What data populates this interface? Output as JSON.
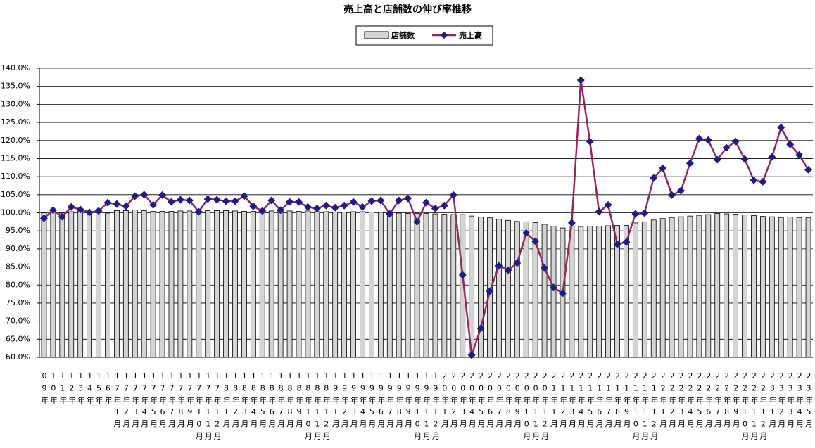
{
  "chart_data": {
    "type": "bar-line",
    "title": "売上高と店舗数の伸び率推移",
    "categories": [
      "09年",
      "10年",
      "11年",
      "12年",
      "13年",
      "14年",
      "15年",
      "16年",
      "17年1月",
      "17年2月",
      "17年3月",
      "17年4月",
      "17年5月",
      "17年6月",
      "17年7月",
      "17年8月",
      "17年9月",
      "17年10月",
      "17年11月",
      "17年12月",
      "18年1月",
      "18年2月",
      "18年3月",
      "18年4月",
      "18年5月",
      "18年6月",
      "18年7月",
      "18年8月",
      "18年9月",
      "18年10月",
      "18年11月",
      "18年12月",
      "19年1月",
      "19年2月",
      "19年3月",
      "19年4月",
      "19年5月",
      "19年6月",
      "19年7月",
      "19年8月",
      "19年9月",
      "19年10月",
      "19年11月",
      "19年12月",
      "20年1月",
      "20年2月",
      "20年3月",
      "20年4月",
      "20年5月",
      "20年6月",
      "20年7月",
      "20年8月",
      "20年9月",
      "20年10月",
      "20年11月",
      "20年12月",
      "21年1月",
      "21年2月",
      "21年3月",
      "21年4月",
      "21年5月",
      "21年6月",
      "21年7月",
      "21年8月",
      "21年9月",
      "21年10月",
      "21年11月",
      "21年12月",
      "22年1月",
      "22年2月",
      "22年3月",
      "22年4月",
      "22年5月",
      "22年6月",
      "22年7月",
      "22年8月",
      "22年9月",
      "22年10月",
      "22年11月",
      "22年12月",
      "23年1月",
      "23年2月",
      "23年3月",
      "23年4月",
      "23年5月"
    ],
    "series": [
      {
        "name": "店舗数",
        "type": "bar",
        "color": "#d4d4d4",
        "values": [
          100.0,
          100.2,
          100.0,
          100.3,
          100.4,
          100.1,
          100.0,
          99.9,
          100.6,
          100.6,
          100.8,
          100.6,
          100.4,
          100.4,
          100.4,
          100.5,
          100.5,
          100.4,
          100.6,
          100.6,
          100.6,
          100.5,
          100.4,
          100.4,
          100.5,
          100.5,
          100.6,
          100.5,
          100.4,
          100.5,
          100.3,
          100.3,
          100.2,
          100.2,
          100.3,
          100.3,
          100.2,
          100.1,
          100.0,
          99.9,
          99.8,
          99.8,
          99.8,
          99.7,
          99.6,
          99.5,
          99.5,
          99.1,
          98.8,
          98.6,
          98.2,
          97.9,
          97.6,
          97.5,
          97.3,
          96.8,
          96.3,
          95.8,
          96.3,
          96.2,
          96.3,
          96.3,
          96.4,
          96.5,
          96.5,
          97.2,
          97.5,
          98.0,
          98.4,
          98.7,
          98.9,
          99.1,
          99.3,
          99.5,
          99.8,
          99.7,
          99.6,
          99.4,
          99.2,
          99.0,
          98.9,
          98.7,
          98.8,
          98.7,
          98.7
        ]
      },
      {
        "name": "売上高",
        "type": "line",
        "color": "#99245e",
        "marker_color": "#1c1c8a",
        "values": [
          98.5,
          100.7,
          98.9,
          101.6,
          100.9,
          100.1,
          100.5,
          102.8,
          102.4,
          101.8,
          104.6,
          105.0,
          102.2,
          104.9,
          103.0,
          103.6,
          103.4,
          100.3,
          103.8,
          103.6,
          103.2,
          103.2,
          104.6,
          101.8,
          100.5,
          103.4,
          100.7,
          103.0,
          103.0,
          101.6,
          101.2,
          102.0,
          101.4,
          102.0,
          103.0,
          101.6,
          103.2,
          103.4,
          99.7,
          103.4,
          104.0,
          97.5,
          102.8,
          101.2,
          102.0,
          104.9,
          82.8,
          60.6,
          68.0,
          78.3,
          85.3,
          84.1,
          86.1,
          94.4,
          92.1,
          84.7,
          79.3,
          77.7,
          97.2,
          136.7,
          119.7,
          100.3,
          102.2,
          91.3,
          91.9,
          99.7,
          99.9,
          109.6,
          112.3,
          104.9,
          106.1,
          113.7,
          120.5,
          120.1,
          114.7,
          118.0,
          119.7,
          114.9,
          109.0,
          108.6,
          115.4,
          123.6,
          118.9,
          116.0,
          111.9
        ]
      }
    ],
    "ylim": [
      60,
      140
    ],
    "yticks": [
      {
        "value": 60,
        "label": "60.0%"
      },
      {
        "value": 65,
        "label": "65.0%"
      },
      {
        "value": 70,
        "label": "70.0%"
      },
      {
        "value": 75,
        "label": "75.0%"
      },
      {
        "value": 80,
        "label": "80.0%"
      },
      {
        "value": 85,
        "label": "85.0%"
      },
      {
        "value": 90,
        "label": "90.0%"
      },
      {
        "value": 95,
        "label": "95.0%"
      },
      {
        "value": 100,
        "label": "100.0%"
      },
      {
        "value": 105,
        "label": "105.0%"
      },
      {
        "value": 110,
        "label": "110.0%"
      },
      {
        "value": 115,
        "label": "115.0%"
      },
      {
        "value": 120,
        "label": "120.0%"
      },
      {
        "value": 125,
        "label": "125.0%"
      },
      {
        "value": 130,
        "label": "130.0%"
      },
      {
        "value": 135,
        "label": "135.0%"
      },
      {
        "value": 140,
        "label": "140.0%"
      }
    ],
    "grid": true,
    "legend": "top"
  }
}
